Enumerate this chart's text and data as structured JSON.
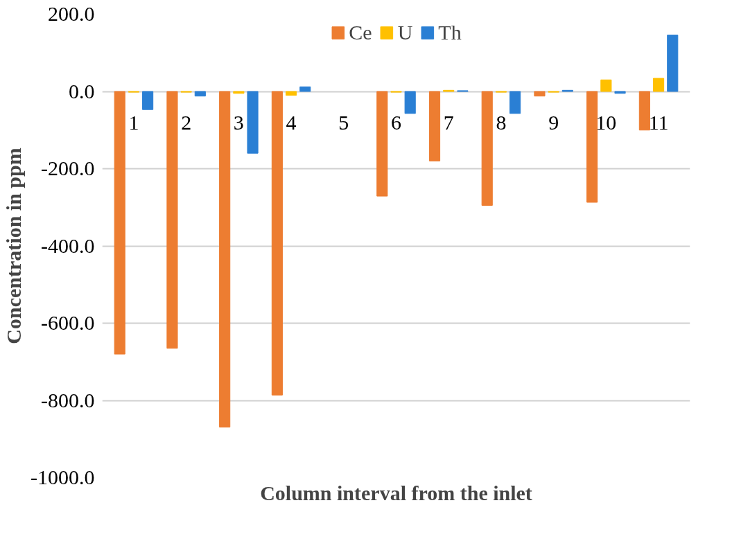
{
  "chart_data": {
    "type": "bar",
    "xlabel": "Column interval from the inlet",
    "ylabel": "Concentration in ppm",
    "categories": [
      "1",
      "2",
      "3",
      "4",
      "5",
      "6",
      "7",
      "8",
      "9",
      "10",
      "11"
    ],
    "series": [
      {
        "name": "Ce",
        "color": "#ed7d31",
        "values": [
          -680,
          -665,
          -869,
          -786,
          null,
          -271,
          -180,
          -295,
          -12,
          -287,
          -100
        ]
      },
      {
        "name": "U",
        "color": "#ffc000",
        "values": [
          -2,
          -2,
          -5,
          -10,
          null,
          -2,
          3,
          -2,
          -2,
          30,
          34
        ]
      },
      {
        "name": "Th",
        "color": "#2a7fd4",
        "values": [
          -47,
          -12,
          -160,
          12,
          null,
          -57,
          2,
          -57,
          3,
          -5,
          146
        ]
      }
    ],
    "ylim": [
      -1000,
      200
    ],
    "yticks": [
      {
        "value": -1000,
        "label": "-1000.0"
      },
      {
        "value": -800,
        "label": "-800.0"
      },
      {
        "value": -600,
        "label": "-600.0"
      },
      {
        "value": -400,
        "label": "-400.0"
      },
      {
        "value": -200,
        "label": "-200.0"
      },
      {
        "value": 0,
        "label": "0.0"
      },
      {
        "value": 200,
        "label": "200.0"
      }
    ],
    "grid": "y",
    "legend": "top"
  }
}
